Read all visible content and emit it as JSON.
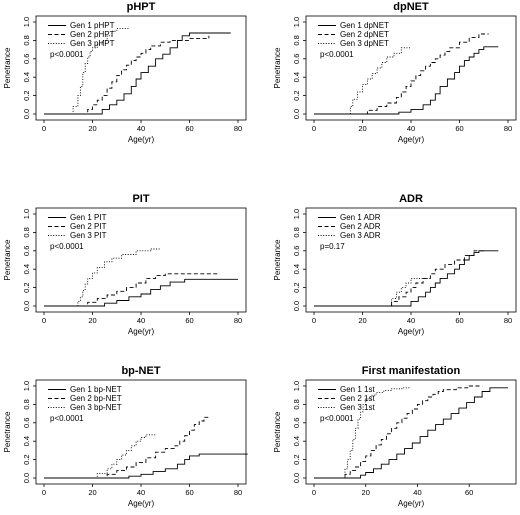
{
  "chart_data": [
    {
      "type": "line",
      "title": "pHPT",
      "xlabel": "Age(yr)",
      "ylabel": "Penetrance",
      "xlim": [
        0,
        80
      ],
      "ylim": [
        0,
        1.0
      ],
      "xticks": [
        0,
        20,
        40,
        60,
        80
      ],
      "yticks": [
        0,
        0.2,
        0.4,
        0.6,
        0.8,
        1.0
      ],
      "xtick_labels": [
        "0",
        "20",
        "40",
        "60",
        "80"
      ],
      "ytick_labels": [
        "0.0",
        "0.2",
        "0.4",
        "0.6",
        "0.8",
        "1.0"
      ],
      "legend_position": "top-left",
      "annotation": "p<0.0001",
      "series": [
        {
          "name": "Gen 1 pHPT",
          "style": "solid",
          "x": [
            0,
            20,
            24,
            27,
            30,
            33,
            36,
            38,
            40,
            43,
            46,
            49,
            52,
            55,
            57,
            60,
            77
          ],
          "y": [
            0,
            0,
            0.05,
            0.1,
            0.15,
            0.22,
            0.3,
            0.38,
            0.45,
            0.52,
            0.6,
            0.65,
            0.72,
            0.8,
            0.85,
            0.88,
            0.88
          ]
        },
        {
          "name": "Gen 2 pHPT",
          "style": "dashed",
          "x": [
            0,
            16,
            18,
            20,
            22,
            24,
            26,
            28,
            30,
            32,
            34,
            36,
            38,
            40,
            42,
            44,
            48,
            52,
            60,
            68
          ],
          "y": [
            0,
            0,
            0.05,
            0.1,
            0.15,
            0.2,
            0.28,
            0.35,
            0.42,
            0.48,
            0.53,
            0.58,
            0.62,
            0.66,
            0.7,
            0.74,
            0.78,
            0.8,
            0.82,
            0.85
          ]
        },
        {
          "name": "Gen 3 pHPT",
          "style": "dotted",
          "x": [
            0,
            10,
            12,
            14,
            15,
            16,
            17,
            18,
            19,
            20,
            22,
            24,
            26,
            28,
            30,
            35
          ],
          "y": [
            0,
            0,
            0.08,
            0.2,
            0.3,
            0.45,
            0.55,
            0.62,
            0.68,
            0.72,
            0.76,
            0.8,
            0.85,
            0.9,
            0.93,
            0.93
          ]
        }
      ]
    },
    {
      "type": "line",
      "title": "dpNET",
      "xlabel": "Age(yr)",
      "ylabel": "Penetrance",
      "xlim": [
        0,
        80
      ],
      "ylim": [
        0,
        1.0
      ],
      "xticks": [
        0,
        20,
        40,
        60,
        80
      ],
      "yticks": [
        0,
        0.2,
        0.4,
        0.6,
        0.8,
        1.0
      ],
      "xtick_labels": [
        "0",
        "20",
        "40",
        "60",
        "80"
      ],
      "ytick_labels": [
        "0.0",
        "0.2",
        "0.4",
        "0.6",
        "0.8",
        "1.0"
      ],
      "legend_position": "top-left",
      "annotation": "p<0.0001",
      "series": [
        {
          "name": "Gen 1 dpNET",
          "style": "solid",
          "x": [
            0,
            30,
            35,
            40,
            45,
            48,
            50,
            52,
            55,
            58,
            60,
            62,
            64,
            66,
            68,
            70,
            72,
            76
          ],
          "y": [
            0,
            0,
            0.02,
            0.05,
            0.1,
            0.15,
            0.22,
            0.3,
            0.38,
            0.45,
            0.52,
            0.58,
            0.62,
            0.66,
            0.7,
            0.73,
            0.73,
            0.73
          ]
        },
        {
          "name": "Gen 2 dpNET",
          "style": "dashed",
          "x": [
            0,
            18,
            22,
            26,
            30,
            34,
            36,
            38,
            40,
            42,
            44,
            46,
            48,
            50,
            52,
            54,
            56,
            60,
            64,
            68,
            72
          ],
          "y": [
            0,
            0,
            0.04,
            0.08,
            0.12,
            0.18,
            0.24,
            0.3,
            0.36,
            0.42,
            0.47,
            0.52,
            0.56,
            0.6,
            0.64,
            0.68,
            0.72,
            0.78,
            0.83,
            0.87,
            0.87
          ]
        },
        {
          "name": "Gen 3 dpNET",
          "style": "dotted",
          "x": [
            0,
            14,
            15,
            16,
            18,
            20,
            22,
            24,
            26,
            28,
            30,
            33,
            36,
            40
          ],
          "y": [
            0,
            0,
            0.08,
            0.16,
            0.24,
            0.32,
            0.38,
            0.44,
            0.5,
            0.56,
            0.62,
            0.66,
            0.72,
            0.72
          ]
        }
      ]
    },
    {
      "type": "line",
      "title": "PIT",
      "xlabel": "Age(yr)",
      "ylabel": "Penetrance",
      "xlim": [
        0,
        80
      ],
      "ylim": [
        0,
        1.0
      ],
      "xticks": [
        0,
        20,
        40,
        60,
        80
      ],
      "yticks": [
        0,
        0.2,
        0.4,
        0.6,
        0.8,
        1.0
      ],
      "xtick_labels": [
        "0",
        "20",
        "40",
        "60",
        "80"
      ],
      "ytick_labels": [
        "0.0",
        "0.2",
        "0.4",
        "0.6",
        "0.8",
        "1.0"
      ],
      "legend_position": "top-left",
      "annotation": "p<0.0001",
      "series": [
        {
          "name": "Gen 1 PIT",
          "style": "solid",
          "x": [
            0,
            20,
            25,
            30,
            35,
            40,
            44,
            48,
            52,
            58,
            80
          ],
          "y": [
            0,
            0,
            0.03,
            0.06,
            0.1,
            0.13,
            0.18,
            0.22,
            0.26,
            0.29,
            0.29
          ]
        },
        {
          "name": "Gen 2 PIT",
          "style": "dashed",
          "x": [
            0,
            14,
            18,
            22,
            26,
            30,
            34,
            38,
            42,
            46,
            50,
            55,
            60,
            72
          ],
          "y": [
            0,
            0,
            0.04,
            0.08,
            0.12,
            0.16,
            0.2,
            0.25,
            0.3,
            0.33,
            0.35,
            0.35,
            0.35,
            0.35
          ]
        },
        {
          "name": "Gen 3 PIT",
          "style": "dotted",
          "x": [
            0,
            13,
            14,
            15,
            16,
            17,
            18,
            20,
            22,
            25,
            28,
            32,
            38,
            44,
            48
          ],
          "y": [
            0,
            0,
            0.05,
            0.1,
            0.17,
            0.24,
            0.3,
            0.36,
            0.42,
            0.48,
            0.52,
            0.56,
            0.6,
            0.62,
            0.62
          ]
        }
      ]
    },
    {
      "type": "line",
      "title": "ADR",
      "xlabel": "Age(yr)",
      "ylabel": "Penetrance",
      "xlim": [
        0,
        80
      ],
      "ylim": [
        0,
        1.0
      ],
      "xticks": [
        0,
        20,
        40,
        60,
        80
      ],
      "yticks": [
        0,
        0.2,
        0.4,
        0.6,
        0.8,
        1.0
      ],
      "xtick_labels": [
        "0",
        "20",
        "40",
        "60",
        "80"
      ],
      "ytick_labels": [
        "0.0",
        "0.2",
        "0.4",
        "0.6",
        "0.8",
        "1.0"
      ],
      "legend_position": "top-left",
      "annotation": "p=0.17",
      "series": [
        {
          "name": "Gen 1 ADR",
          "style": "solid",
          "x": [
            0,
            35,
            40,
            43,
            46,
            48,
            50,
            52,
            55,
            58,
            60,
            62,
            64,
            66,
            68,
            76
          ],
          "y": [
            0,
            0,
            0.05,
            0.1,
            0.15,
            0.2,
            0.25,
            0.3,
            0.35,
            0.4,
            0.45,
            0.5,
            0.55,
            0.58,
            0.6,
            0.6
          ]
        },
        {
          "name": "Gen 2 ADR",
          "style": "dashed",
          "x": [
            0,
            30,
            32,
            35,
            38,
            40,
            42,
            45,
            48,
            50,
            54,
            58,
            62,
            66,
            70
          ],
          "y": [
            0,
            0,
            0.05,
            0.1,
            0.15,
            0.2,
            0.25,
            0.3,
            0.35,
            0.4,
            0.45,
            0.5,
            0.55,
            0.6,
            0.6
          ]
        },
        {
          "name": "Gen 3 ADR",
          "style": "dotted",
          "x": [
            0,
            30,
            32,
            34,
            36,
            38,
            40,
            42,
            45,
            48
          ],
          "y": [
            0,
            0,
            0.08,
            0.15,
            0.2,
            0.25,
            0.3,
            0.3,
            0.3,
            0.3
          ]
        }
      ]
    },
    {
      "type": "line",
      "title": "bp-NET",
      "xlabel": "Age(yr)",
      "ylabel": "Penetrance",
      "xlim": [
        0,
        80
      ],
      "ylim": [
        0,
        1.0
      ],
      "xticks": [
        0,
        20,
        40,
        60,
        80
      ],
      "yticks": [
        0,
        0.2,
        0.4,
        0.6,
        0.8,
        1.0
      ],
      "xtick_labels": [
        "0",
        "20",
        "40",
        "60",
        "80"
      ],
      "ytick_labels": [
        "0.0",
        "0.2",
        "0.4",
        "0.6",
        "0.8",
        "1.0"
      ],
      "legend_position": "top-left",
      "annotation": "p<0.0001",
      "series": [
        {
          "name": "Gen 1 bp-NET",
          "style": "solid",
          "x": [
            0,
            30,
            35,
            40,
            45,
            50,
            55,
            58,
            60,
            64,
            84
          ],
          "y": [
            0,
            0,
            0.02,
            0.04,
            0.07,
            0.1,
            0.15,
            0.2,
            0.24,
            0.26,
            0.26
          ]
        },
        {
          "name": "Gen 2 bp-NET",
          "style": "dashed",
          "x": [
            0,
            22,
            26,
            30,
            34,
            38,
            42,
            46,
            50,
            54,
            56,
            58,
            60,
            62,
            64,
            66,
            68
          ],
          "y": [
            0,
            0,
            0.04,
            0.08,
            0.12,
            0.17,
            0.22,
            0.28,
            0.32,
            0.35,
            0.4,
            0.46,
            0.52,
            0.58,
            0.62,
            0.66,
            0.68
          ]
        },
        {
          "name": "Gen 3 bp-NET",
          "style": "dotted",
          "x": [
            0,
            18,
            22,
            26,
            28,
            30,
            32,
            34,
            36,
            38,
            40,
            42,
            44,
            46
          ],
          "y": [
            0,
            0,
            0.05,
            0.1,
            0.15,
            0.2,
            0.25,
            0.3,
            0.35,
            0.4,
            0.44,
            0.47,
            0.47,
            0.47
          ]
        }
      ]
    },
    {
      "type": "line",
      "title": "First manifestation",
      "xlabel": "Age(yr)",
      "ylabel": "Penetrance",
      "xlim": [
        0,
        75
      ],
      "ylim": [
        0,
        1.0
      ],
      "xticks": [
        0,
        20,
        40,
        60
      ],
      "yticks": [
        0,
        0.2,
        0.4,
        0.6,
        0.8,
        1.0
      ],
      "xtick_labels": [
        "0",
        "20",
        "40",
        "60"
      ],
      "ytick_labels": [
        "0.0",
        "0.2",
        "0.4",
        "0.6",
        "0.8",
        "1.0"
      ],
      "legend_position": "top-left",
      "annotation": "p<0.0001",
      "series": [
        {
          "name": "Gen 1 1st",
          "style": "solid",
          "x": [
            0,
            15,
            18,
            20,
            23,
            26,
            29,
            32,
            35,
            38,
            41,
            44,
            47,
            50,
            53,
            56,
            59,
            62,
            65,
            68,
            72,
            75
          ],
          "y": [
            0,
            0,
            0.03,
            0.06,
            0.1,
            0.15,
            0.2,
            0.26,
            0.32,
            0.38,
            0.45,
            0.52,
            0.58,
            0.64,
            0.7,
            0.76,
            0.82,
            0.88,
            0.94,
            0.98,
            0.98,
            0.98
          ]
        },
        {
          "name": "Gen 2 1st",
          "style": "dashed",
          "x": [
            0,
            10,
            12,
            14,
            16,
            18,
            20,
            22,
            24,
            26,
            28,
            30,
            32,
            34,
            36,
            38,
            40,
            42,
            44,
            46,
            48,
            50,
            55,
            60,
            65
          ],
          "y": [
            0,
            0,
            0.04,
            0.08,
            0.12,
            0.18,
            0.24,
            0.3,
            0.36,
            0.42,
            0.48,
            0.54,
            0.6,
            0.65,
            0.7,
            0.75,
            0.8,
            0.84,
            0.88,
            0.91,
            0.94,
            0.96,
            0.98,
            1.0,
            1.0
          ]
        },
        {
          "name": "Gen 3 1st",
          "style": "dotted",
          "x": [
            0,
            10,
            12,
            13,
            14,
            15,
            16,
            17,
            18,
            19,
            20,
            22,
            24,
            27,
            30,
            34,
            37
          ],
          "y": [
            0,
            0,
            0.1,
            0.2,
            0.3,
            0.42,
            0.54,
            0.64,
            0.72,
            0.8,
            0.86,
            0.9,
            0.93,
            0.95,
            0.97,
            0.98,
            0.98
          ]
        }
      ]
    }
  ]
}
